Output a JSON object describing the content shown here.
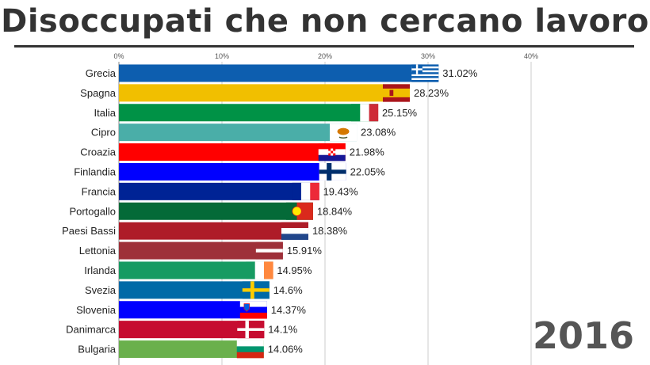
{
  "title": "Disoccupati che non cercano lavoro",
  "year": "2016",
  "chart_data": {
    "type": "bar",
    "orientation": "horizontal",
    "title": "Disoccupati che non cercano lavoro",
    "xlim": [
      0,
      40
    ],
    "x_ticks": [
      "0%",
      "10%",
      "20%",
      "30%",
      "40%"
    ],
    "x_tick_values": [
      0,
      10,
      20,
      30,
      40
    ],
    "grid": true,
    "categories": [
      "Grecia",
      "Spagna",
      "Italia",
      "Cipro",
      "Croazia",
      "Finlandia",
      "Francia",
      "Portogallo",
      "Paesi Bassi",
      "Lettonia",
      "Irlanda",
      "Svezia",
      "Slovenia",
      "Danimarca",
      "Bulgaria"
    ],
    "values": [
      31.02,
      28.23,
      25.15,
      23.08,
      21.98,
      22.05,
      19.43,
      18.84,
      18.38,
      15.91,
      14.95,
      14.6,
      14.37,
      14.1,
      14.06
    ],
    "value_labels": [
      "31.02%",
      "28.23%",
      "25.15%",
      "23.08%",
      "21.98%",
      "22.05%",
      "19.43%",
      "18.84%",
      "18.38%",
      "15.91%",
      "14.95%",
      "14.6%",
      "14.37%",
      "14.1%",
      "14.06%"
    ],
    "colors": [
      "#0d5eaf",
      "#f1bf00",
      "#009246",
      "#4aaea8",
      "#ff0000",
      "#0000ff",
      "#002395",
      "#046a38",
      "#ae1c28",
      "#9e3039",
      "#169b62",
      "#006aa7",
      "#0000ff",
      "#c60c30",
      "#6ab04c"
    ],
    "flags": [
      "flag-greece",
      "flag-spain",
      "flag-italy",
      "flag-cyprus",
      "flag-croatia",
      "flag-finland",
      "flag-france",
      "flag-portugal",
      "flag-netherlands",
      "flag-latvia",
      "flag-ireland",
      "flag-sweden",
      "flag-slovenia",
      "flag-denmark",
      "flag-bulgaria"
    ]
  }
}
